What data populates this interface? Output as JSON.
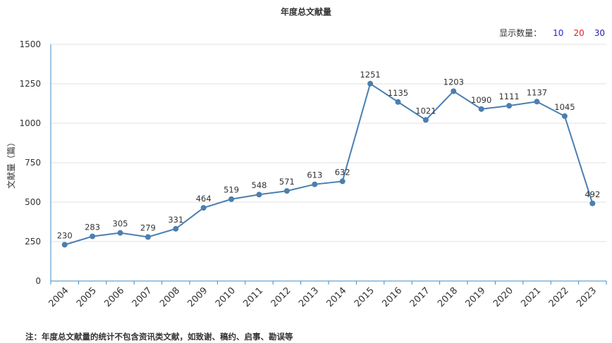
{
  "chart_title": "年度总文献量",
  "display_count": {
    "label": "显示数量：",
    "options": [
      {
        "value": "10",
        "color": "#2222dd"
      },
      {
        "value": "20",
        "color": "#dd2222"
      },
      {
        "value": "30",
        "color": "#2222aa"
      }
    ]
  },
  "note": "注：年度总文献量的统计不包含资讯类文献，如致谢、稿约、启事、勘误等",
  "colors": {
    "line": "#4a7fb0",
    "axis": "#3b8cc4",
    "grid": "#e0e0e0"
  },
  "chart_data": {
    "type": "line",
    "title": "年度总文献量",
    "xlabel": "",
    "ylabel": "文献量（篇）",
    "ylim": [
      0,
      1500
    ],
    "yticks": [
      0,
      250,
      500,
      750,
      1000,
      1250,
      1500
    ],
    "grid": true,
    "categories": [
      "2004",
      "2005",
      "2006",
      "2007",
      "2008",
      "2009",
      "2010",
      "2011",
      "2012",
      "2013",
      "2014",
      "2015",
      "2016",
      "2017",
      "2018",
      "2019",
      "2020",
      "2021",
      "2022",
      "2023"
    ],
    "series": [
      {
        "values": [
          230,
          283,
          305,
          279,
          331,
          464,
          519,
          548,
          571,
          613,
          632,
          1251,
          1135,
          1021,
          1203,
          1090,
          1111,
          1137,
          1045,
          492
        ]
      }
    ]
  }
}
